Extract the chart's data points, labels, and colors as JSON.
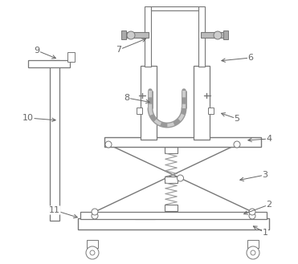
{
  "line_color": "#aaaaaa",
  "dark_color": "#777777",
  "mid_color": "#999999",
  "label_color": "#666666",
  "figsize": [
    3.71,
    3.29
  ],
  "dpi": 100,
  "labels": [
    [
      "1",
      330,
      290,
      312,
      280
    ],
    [
      "2",
      335,
      255,
      300,
      268
    ],
    [
      "3",
      330,
      218,
      295,
      225
    ],
    [
      "4",
      335,
      173,
      305,
      175
    ],
    [
      "5",
      295,
      148,
      272,
      140
    ],
    [
      "6",
      312,
      72,
      272,
      76
    ],
    [
      "7",
      148,
      62,
      185,
      47
    ],
    [
      "8",
      158,
      122,
      190,
      128
    ],
    [
      "9",
      46,
      63,
      73,
      74
    ],
    [
      "10",
      35,
      147,
      73,
      150
    ],
    [
      "11",
      68,
      262,
      100,
      272
    ]
  ]
}
